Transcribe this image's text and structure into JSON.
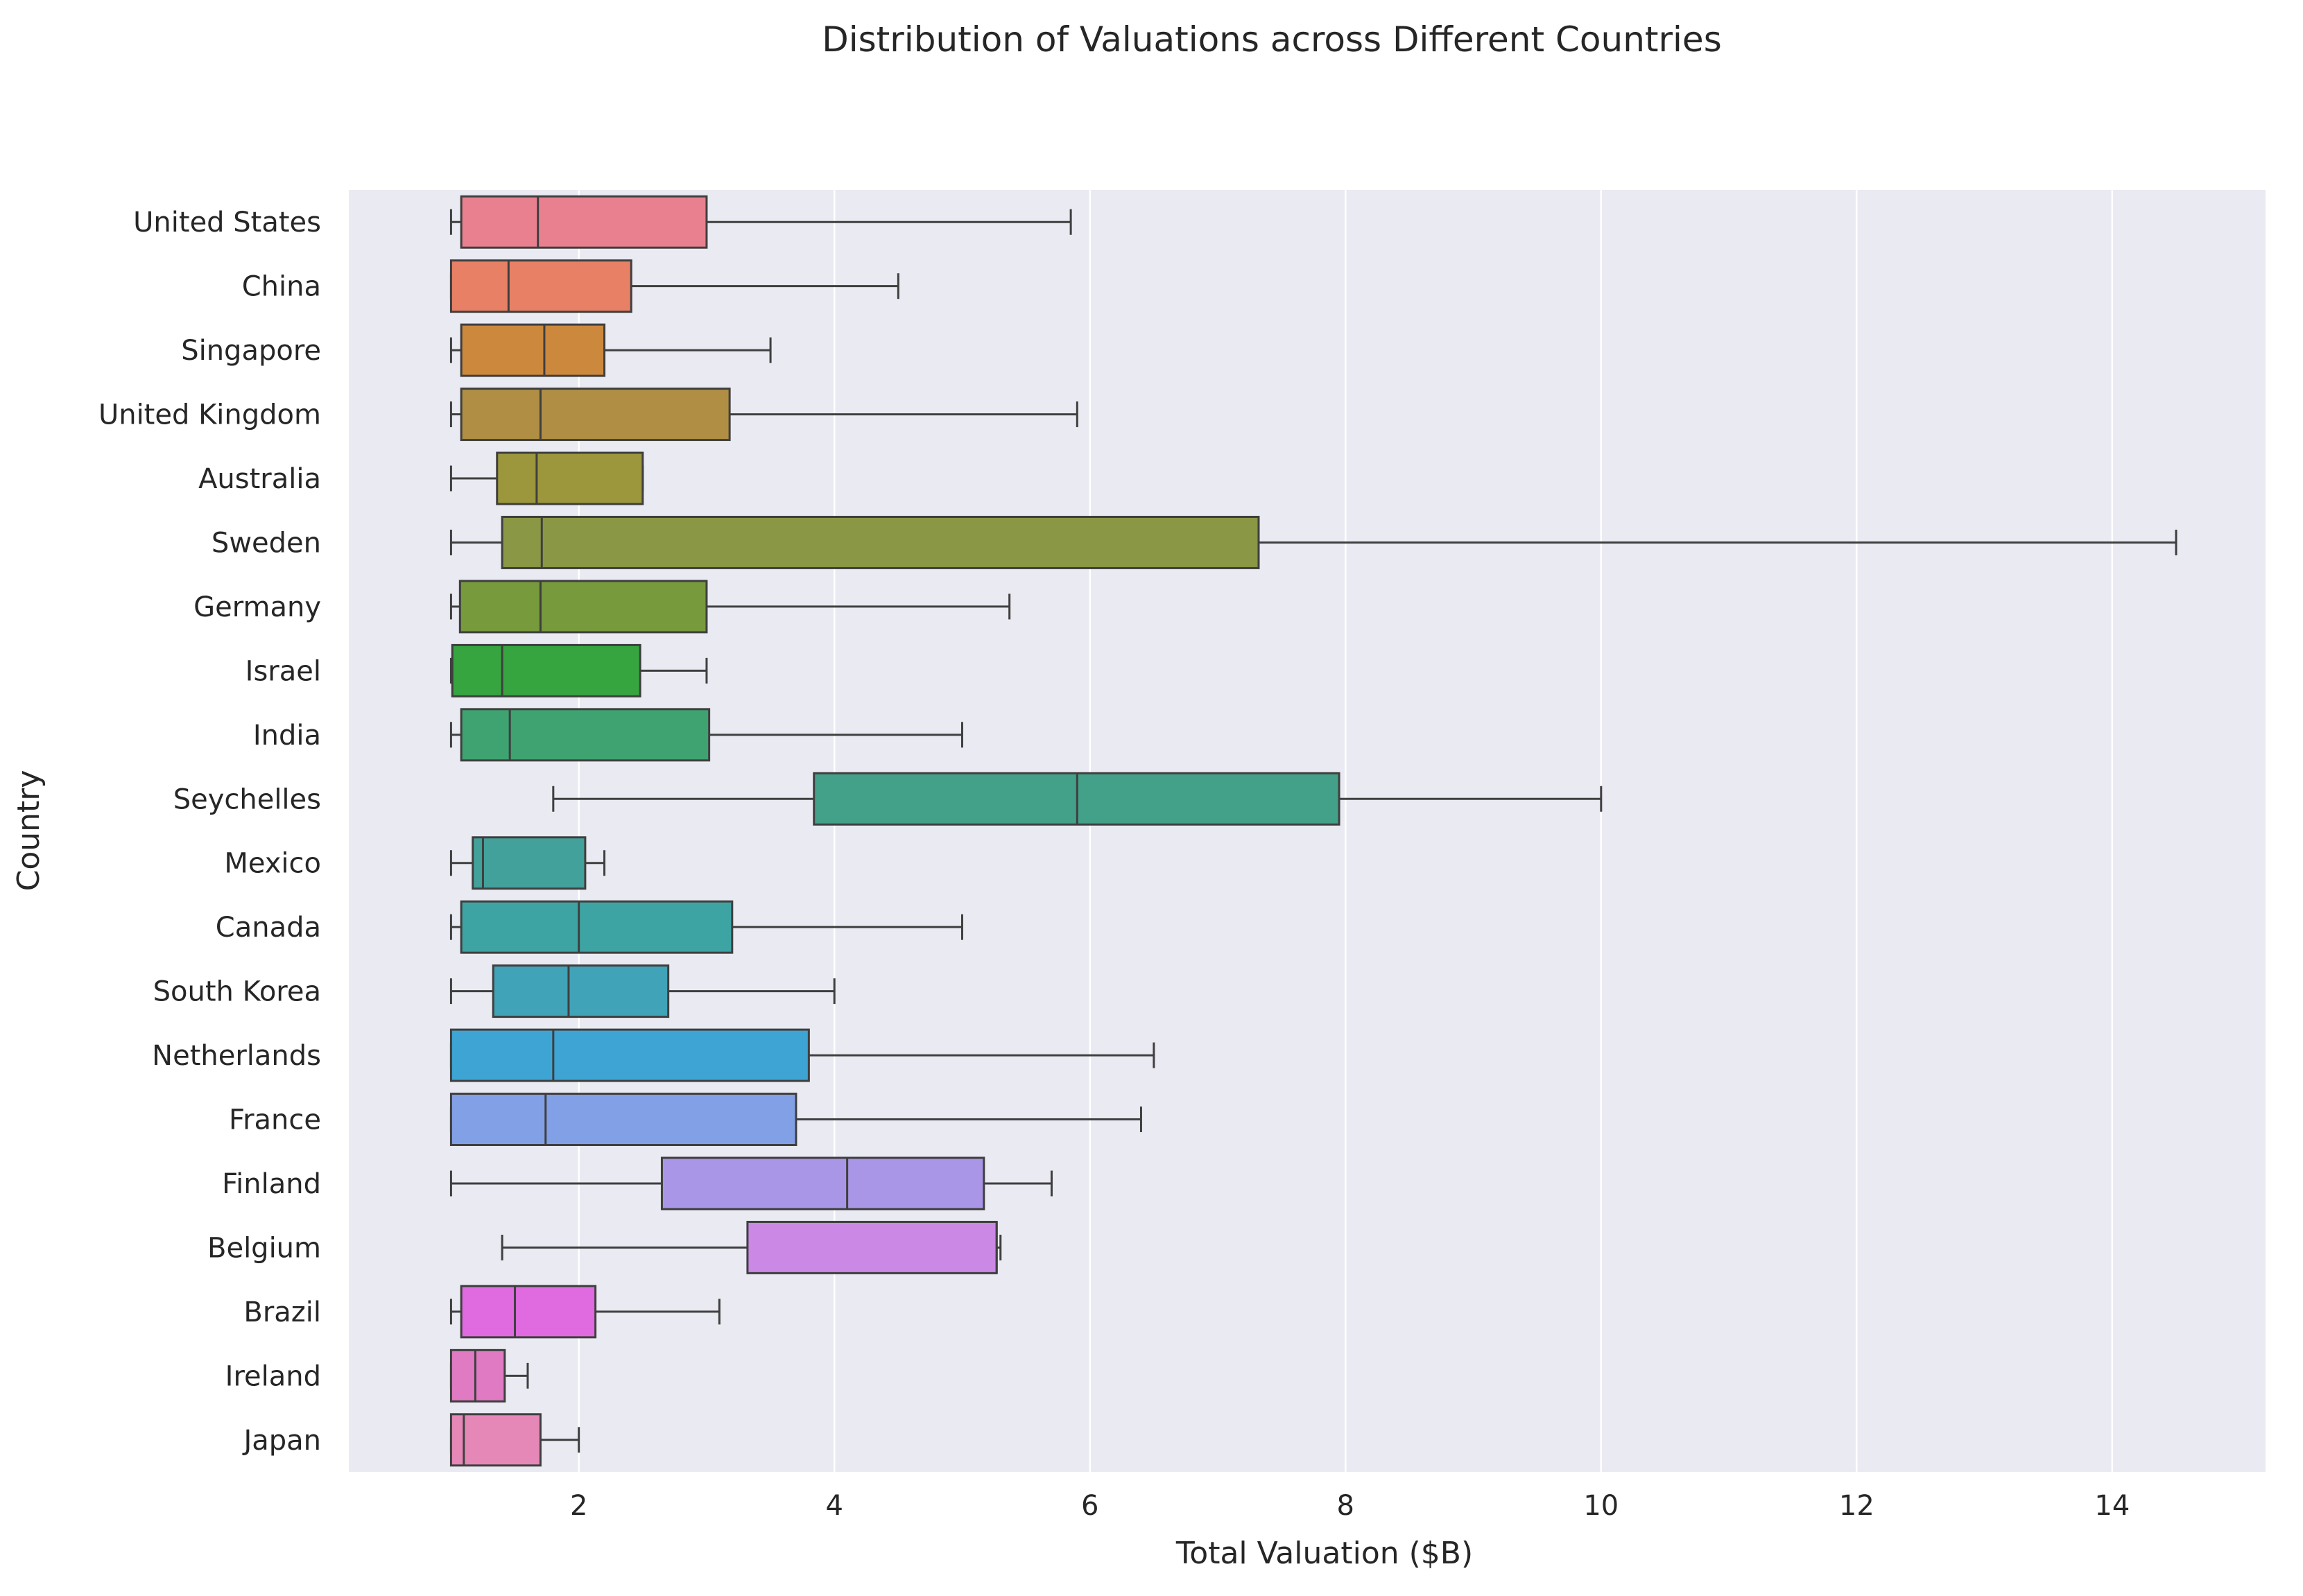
{
  "chart_data": {
    "type": "box",
    "orientation": "horizontal",
    "title": "Distribution of Valuations across Different Countries",
    "xlabel": "Total Valuation ($B)",
    "ylabel": "Country",
    "xlim": [
      0.2,
      15.2
    ],
    "xticks": [
      2,
      4,
      6,
      8,
      10,
      12,
      14
    ],
    "grid": true,
    "legend": "none",
    "categories": [
      "United States",
      "China",
      "Singapore",
      "United Kingdom",
      "Australia",
      "Sweden",
      "Germany",
      "Israel",
      "India",
      "Seychelles",
      "Mexico",
      "Canada",
      "South Korea",
      "Netherlands",
      "France",
      "Finland",
      "Belgium",
      "Brazil",
      "Ireland",
      "Japan"
    ],
    "boxes": [
      {
        "category": "United States",
        "whisker_low": 1.0,
        "q1": 1.08,
        "median": 1.68,
        "q3": 3.0,
        "whisker_high": 5.85,
        "color": "#e8808f"
      },
      {
        "category": "China",
        "whisker_low": 1.0,
        "q1": 1.0,
        "median": 1.45,
        "q3": 2.41,
        "whisker_high": 4.5,
        "color": "#e88066"
      },
      {
        "category": "Singapore",
        "whisker_low": 1.0,
        "q1": 1.08,
        "median": 1.73,
        "q3": 2.2,
        "whisker_high": 3.5,
        "color": "#cc883d"
      },
      {
        "category": "United Kingdom",
        "whisker_low": 1.0,
        "q1": 1.08,
        "median": 1.7,
        "q3": 3.18,
        "whisker_high": 5.9,
        "color": "#b08e44"
      },
      {
        "category": "Australia",
        "whisker_low": 1.0,
        "q1": 1.36,
        "median": 1.67,
        "q3": 2.5,
        "whisker_high": 2.5,
        "color": "#9c973c"
      },
      {
        "category": "Sweden",
        "whisker_low": 1.0,
        "q1": 1.4,
        "median": 1.71,
        "q3": 7.32,
        "whisker_high": 14.5,
        "color": "#8a9744"
      },
      {
        "category": "Germany",
        "whisker_low": 1.0,
        "q1": 1.07,
        "median": 1.7,
        "q3": 3.0,
        "whisker_high": 5.37,
        "color": "#779a3d"
      },
      {
        "category": "Israel",
        "whisker_low": 1.0,
        "q1": 1.01,
        "median": 1.4,
        "q3": 2.48,
        "whisker_high": 3.0,
        "color": "#36a540"
      },
      {
        "category": "India",
        "whisker_low": 1.0,
        "q1": 1.08,
        "median": 1.46,
        "q3": 3.02,
        "whisker_high": 5.0,
        "color": "#3ea370"
      },
      {
        "category": "Seychelles",
        "whisker_low": 1.8,
        "q1": 3.84,
        "median": 5.9,
        "q3": 7.95,
        "whisker_high": 10.0,
        "color": "#43a089"
      },
      {
        "category": "Mexico",
        "whisker_low": 1.0,
        "q1": 1.17,
        "median": 1.25,
        "q3": 2.05,
        "whisker_high": 2.2,
        "color": "#42a19a"
      },
      {
        "category": "Canada",
        "whisker_low": 1.0,
        "q1": 1.08,
        "median": 2.0,
        "q3": 3.2,
        "whisker_high": 5.0,
        "color": "#3ea3a3"
      },
      {
        "category": "South Korea",
        "whisker_low": 1.0,
        "q1": 1.33,
        "median": 1.92,
        "q3": 2.7,
        "whisker_high": 4.0,
        "color": "#41a3b8"
      },
      {
        "category": "Netherlands",
        "whisker_low": 1.0,
        "q1": 1.0,
        "median": 1.8,
        "q3": 3.8,
        "whisker_high": 6.5,
        "color": "#3da4d4"
      },
      {
        "category": "France",
        "whisker_low": 1.0,
        "q1": 1.0,
        "median": 1.74,
        "q3": 3.7,
        "whisker_high": 6.4,
        "color": "#82a0e6"
      },
      {
        "category": "Finland",
        "whisker_low": 1.0,
        "q1": 2.65,
        "median": 4.1,
        "q3": 5.17,
        "whisker_high": 5.7,
        "color": "#a996e6"
      },
      {
        "category": "Belgium",
        "whisker_low": 1.4,
        "q1": 3.32,
        "median": 5.27,
        "q3": 5.27,
        "whisker_high": 5.3,
        "color": "#cb88e4"
      },
      {
        "category": "Brazil",
        "whisker_low": 1.0,
        "q1": 1.08,
        "median": 1.5,
        "q3": 2.13,
        "whisker_high": 3.1,
        "color": "#e06ae0"
      },
      {
        "category": "Ireland",
        "whisker_low": 1.0,
        "q1": 1.0,
        "median": 1.19,
        "q3": 1.42,
        "whisker_high": 1.6,
        "color": "#e07ac2"
      },
      {
        "category": "Japan",
        "whisker_low": 1.0,
        "q1": 1.0,
        "median": 1.1,
        "q3": 1.7,
        "whisker_high": 2.0,
        "color": "#e588b8"
      }
    ]
  }
}
